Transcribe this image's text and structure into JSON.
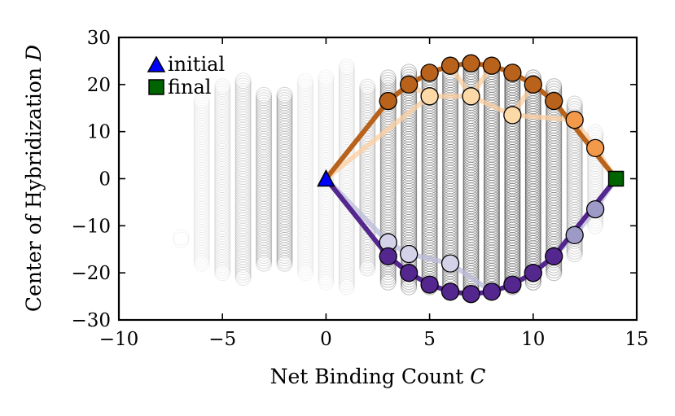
{
  "chart_data": {
    "type": "scatter",
    "title": "",
    "xlabel": "Net Binding Count C",
    "ylabel": "Center of Hybridization D",
    "xlim": [
      -10,
      15
    ],
    "ylim": [
      -30,
      30
    ],
    "xticks": [
      -10,
      -5,
      0,
      5,
      10,
      15
    ],
    "yticks": [
      -30,
      -20,
      -10,
      0,
      10,
      20,
      30
    ],
    "grid": false,
    "legend_position": "top-left",
    "legend": [
      {
        "label": "initial",
        "marker": "triangle",
        "color": "#0000ff"
      },
      {
        "label": "final",
        "marker": "square",
        "color": "#006400"
      }
    ],
    "background_columns": [
      {
        "x": -7,
        "y_min": -13,
        "y_max": -12,
        "density": 0.1
      },
      {
        "x": -6,
        "y_min": -18,
        "y_max": 17,
        "density": 0.1
      },
      {
        "x": -5,
        "y_min": -20,
        "y_max": 20,
        "density": 0.14
      },
      {
        "x": -4,
        "y_min": -21,
        "y_max": 21,
        "density": 0.22
      },
      {
        "x": -3,
        "y_min": -18,
        "y_max": 18,
        "density": 0.3
      },
      {
        "x": -2,
        "y_min": -18,
        "y_max": 18,
        "density": 0.36
      },
      {
        "x": -1,
        "y_min": -20,
        "y_max": 21,
        "density": 0.1
      },
      {
        "x": 0,
        "y_min": -22,
        "y_max": 22,
        "density": 0.1
      },
      {
        "x": 1,
        "y_min": -23,
        "y_max": 24,
        "density": 0.12
      },
      {
        "x": 2,
        "y_min": -19,
        "y_max": 20,
        "density": 0.26
      },
      {
        "x": 3,
        "y_min": -22,
        "y_max": 22,
        "density": 0.48
      },
      {
        "x": 4,
        "y_min": -23,
        "y_max": 23,
        "density": 0.55
      },
      {
        "x": 5,
        "y_min": -23,
        "y_max": 23,
        "density": 0.58
      },
      {
        "x": 6,
        "y_min": -23,
        "y_max": 23,
        "density": 0.6
      },
      {
        "x": 7,
        "y_min": -24,
        "y_max": 24,
        "density": 0.64
      },
      {
        "x": 8,
        "y_min": -24,
        "y_max": 24,
        "density": 0.66
      },
      {
        "x": 9,
        "y_min": -23,
        "y_max": 23,
        "density": 0.7
      },
      {
        "x": 10,
        "y_min": -22,
        "y_max": 22,
        "density": 0.68
      },
      {
        "x": 11,
        "y_min": -20,
        "y_max": 20,
        "density": 0.55
      },
      {
        "x": 12,
        "y_min": -16,
        "y_max": 16,
        "density": 0.35
      },
      {
        "x": 13,
        "y_min": -10,
        "y_max": 10,
        "density": 0.15
      }
    ],
    "series": [
      {
        "name": "orange-path",
        "color": "#b8621b",
        "points": [
          {
            "x": 0,
            "y": 0
          },
          {
            "x": 3,
            "y": 16.5
          },
          {
            "x": 4,
            "y": 20
          },
          {
            "x": 5,
            "y": 22.5
          },
          {
            "x": 6,
            "y": 24
          },
          {
            "x": 7,
            "y": 24.5
          },
          {
            "x": 8,
            "y": 24
          },
          {
            "x": 9,
            "y": 22.5
          },
          {
            "x": 10,
            "y": 20
          },
          {
            "x": 11,
            "y": 16.5
          },
          {
            "x": 14,
            "y": 0
          }
        ],
        "light_points": [
          {
            "x": 5,
            "y": 17.5
          },
          {
            "x": 7,
            "y": 17.5
          },
          {
            "x": 9,
            "y": 13.5
          },
          {
            "x": 12,
            "y": 12.5
          },
          {
            "x": 13,
            "y": 6.5
          }
        ]
      },
      {
        "name": "purple-path",
        "color": "#54278f",
        "points": [
          {
            "x": 0,
            "y": 0
          },
          {
            "x": 3,
            "y": -16.5
          },
          {
            "x": 4,
            "y": -20
          },
          {
            "x": 5,
            "y": -22.5
          },
          {
            "x": 6,
            "y": -24
          },
          {
            "x": 7,
            "y": -24.5
          },
          {
            "x": 8,
            "y": -24
          },
          {
            "x": 9,
            "y": -22.5
          },
          {
            "x": 10,
            "y": -20
          },
          {
            "x": 11,
            "y": -16.5
          },
          {
            "x": 14,
            "y": 0
          }
        ],
        "light_points": [
          {
            "x": 3,
            "y": -13.5
          },
          {
            "x": 4,
            "y": -16
          },
          {
            "x": 6,
            "y": -18
          },
          {
            "x": 12,
            "y": -12
          },
          {
            "x": 13,
            "y": -6.5
          }
        ]
      }
    ],
    "initial_point": {
      "x": 0,
      "y": 0
    },
    "final_point": {
      "x": 14,
      "y": 0
    }
  }
}
